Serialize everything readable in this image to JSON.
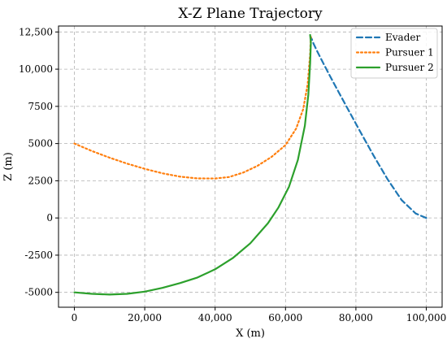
{
  "chart_data": {
    "type": "line",
    "title": "X-Z Plane Trajectory",
    "xlabel": "X (m)",
    "ylabel": "Z (m)",
    "xlim": [
      -4500,
      104500
    ],
    "ylim": [
      -6000,
      12900
    ],
    "xticks": [
      0,
      20000,
      40000,
      60000,
      80000,
      100000
    ],
    "xtick_labels": [
      "0",
      "20,000",
      "40,000",
      "60,000",
      "80,000",
      "100,000"
    ],
    "yticks": [
      -5000,
      -2500,
      0,
      2500,
      5000,
      7500,
      10000,
      12500
    ],
    "ytick_labels": [
      "-5000",
      "-2500",
      "0",
      "2500",
      "5000",
      "7500",
      "10,000",
      "12,500"
    ],
    "grid": true,
    "legend_position": "top-right",
    "series": [
      {
        "name": "Evader",
        "color": "#1f77b4",
        "dash": "dashed",
        "x": [
          100000,
          97000,
          93000,
          89000,
          85000,
          81000,
          78000,
          75000,
          72500,
          70500,
          69000,
          68000,
          67500,
          67100
        ],
        "y": [
          0,
          300,
          1200,
          2600,
          4200,
          5900,
          7200,
          8500,
          9600,
          10500,
          11200,
          11700,
          12000,
          12200
        ]
      },
      {
        "name": "Pursuer 1",
        "color": "#ff7f0e",
        "dash": "dotted",
        "x": [
          0,
          5000,
          10000,
          15000,
          20000,
          25000,
          30000,
          35000,
          40000,
          44000,
          48000,
          52000,
          56000,
          60000,
          63000,
          65000,
          66300,
          67000,
          67200
        ],
        "y": [
          5000,
          4500,
          4050,
          3650,
          3300,
          3000,
          2780,
          2660,
          2650,
          2750,
          3050,
          3500,
          4100,
          4900,
          6000,
          7300,
          9000,
          11000,
          12200
        ]
      },
      {
        "name": "Pursuer 2",
        "color": "#2ca02c",
        "dash": "solid",
        "x": [
          0,
          5000,
          10000,
          15000,
          20000,
          25000,
          30000,
          35000,
          40000,
          45000,
          50000,
          55000,
          58000,
          61000,
          63500,
          65500,
          66500,
          67000,
          67200,
          67000
        ],
        "y": [
          -5000,
          -5100,
          -5150,
          -5100,
          -4950,
          -4700,
          -4380,
          -4000,
          -3450,
          -2700,
          -1700,
          -350,
          700,
          2100,
          3900,
          6200,
          8300,
          10400,
          11800,
          12300
        ]
      }
    ]
  }
}
